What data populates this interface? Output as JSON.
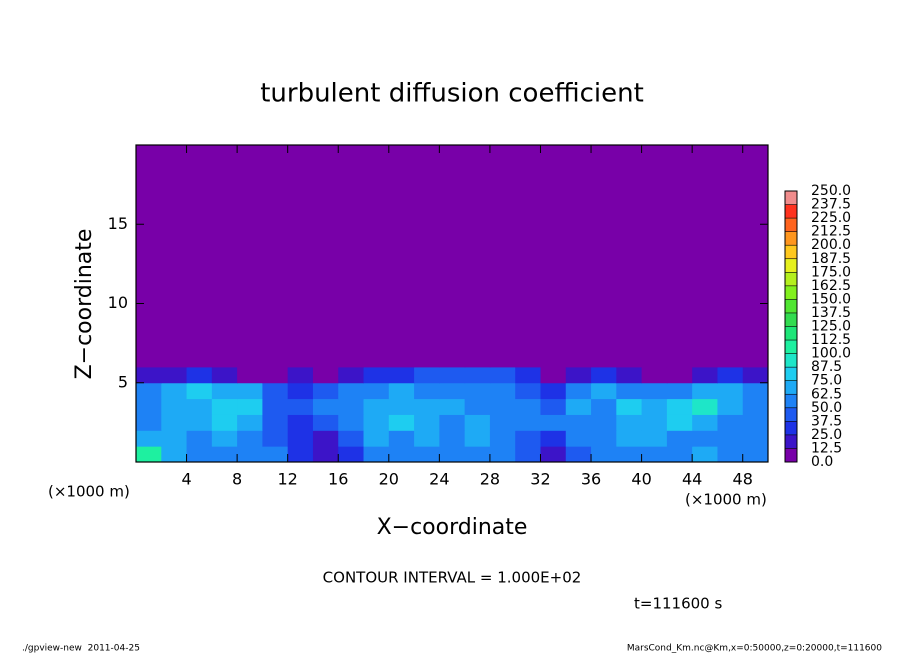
{
  "chart_data": {
    "type": "heatmap",
    "title": "turbulent diffusion coefficient",
    "x_label": "X−coordinate",
    "y_label": "Z−coordinate",
    "x_unit": "(×1000 m)",
    "y_unit": "(×1000 m)",
    "xlim": [
      0,
      50
    ],
    "ylim": [
      0,
      20
    ],
    "xticks": [
      4,
      8,
      12,
      16,
      20,
      24,
      28,
      32,
      36,
      40,
      44,
      48
    ],
    "yticks": [
      5,
      10,
      15
    ],
    "x_edges": [
      0,
      2,
      4,
      6,
      8,
      10,
      12,
      14,
      16,
      18,
      20,
      22,
      24,
      26,
      28,
      30,
      32,
      34,
      36,
      38,
      40,
      42,
      44,
      46,
      48,
      50
    ],
    "y_edges": [
      0,
      1,
      2,
      3,
      4,
      5,
      6,
      20
    ],
    "values": [
      [
        100,
        70,
        60,
        55,
        60,
        50,
        30,
        20,
        25,
        50,
        60,
        55,
        50,
        60,
        55,
        40,
        20,
        40,
        50,
        60,
        55,
        60,
        65,
        60,
        55
      ],
      [
        70,
        65,
        60,
        70,
        60,
        45,
        25,
        20,
        40,
        65,
        60,
        70,
        55,
        65,
        50,
        45,
        30,
        50,
        55,
        65,
        70,
        60,
        60,
        55,
        50
      ],
      [
        60,
        70,
        65,
        75,
        70,
        40,
        35,
        45,
        55,
        70,
        75,
        65,
        60,
        70,
        55,
        60,
        50,
        60,
        50,
        70,
        65,
        75,
        70,
        60,
        55
      ],
      [
        55,
        65,
        70,
        75,
        80,
        45,
        40,
        50,
        60,
        65,
        70,
        70,
        65,
        60,
        60,
        55,
        45,
        65,
        60,
        75,
        65,
        80,
        90,
        70,
        60
      ],
      [
        60,
        70,
        75,
        70,
        65,
        40,
        35,
        45,
        55,
        60,
        65,
        60,
        60,
        55,
        55,
        40,
        30,
        55,
        65,
        60,
        55,
        50,
        70,
        65,
        50
      ],
      [
        15,
        20,
        25,
        15,
        10,
        5,
        15,
        10,
        20,
        30,
        35,
        40,
        45,
        45,
        45,
        30,
        10,
        20,
        25,
        15,
        10,
        10,
        20,
        25,
        15
      ],
      [
        5,
        5,
        5,
        5,
        5,
        5,
        5,
        5,
        5,
        5,
        5,
        5,
        5,
        5,
        5,
        5,
        5,
        5,
        5,
        5,
        5,
        5,
        5,
        5,
        5
      ]
    ],
    "colorbar": {
      "levels": [
        {
          "value": 0,
          "label": "0.0"
        },
        {
          "value": 12.5,
          "label": "12.5"
        },
        {
          "value": 25,
          "label": "25.0"
        },
        {
          "value": 37.5,
          "label": "37.5"
        },
        {
          "value": 50,
          "label": "50.0"
        },
        {
          "value": 62.5,
          "label": "62.5"
        },
        {
          "value": 75,
          "label": "75.0"
        },
        {
          "value": 87.5,
          "label": "87.5"
        },
        {
          "value": 100,
          "label": "100.0"
        },
        {
          "value": 112.5,
          "label": "112.5"
        },
        {
          "value": 125,
          "label": "125.0"
        },
        {
          "value": 137.5,
          "label": "137.5"
        },
        {
          "value": 150,
          "label": "150.0"
        },
        {
          "value": 162.5,
          "label": "162.5"
        },
        {
          "value": 175,
          "label": "175.0"
        },
        {
          "value": 187.5,
          "label": "187.5"
        },
        {
          "value": 200,
          "label": "200.0"
        },
        {
          "value": 212.5,
          "label": "212.5"
        },
        {
          "value": 225,
          "label": "225.0"
        },
        {
          "value": 237.5,
          "label": "237.5"
        },
        {
          "value": 250,
          "label": "250.0"
        }
      ],
      "colors": [
        "#7800a8",
        "#3c14c8",
        "#1e32e6",
        "#1e5af0",
        "#1e82f5",
        "#1eaaf5",
        "#1ecdf0",
        "#1ee6c8",
        "#1ef0a0",
        "#1ee678",
        "#32dc50",
        "#50e632",
        "#82f01e",
        "#b4f01e",
        "#e6f01e",
        "#ffc81e",
        "#ff961e",
        "#ff641e",
        "#ff321e",
        "#f08c8c"
      ]
    },
    "contour_note": "CONTOUR INTERVAL = 1.000E+02",
    "time_label": "t=111600 s",
    "footer_left": "./gpview-new  2011-04-25",
    "footer_right": "MarsCond_Km.nc@Km,x=0:50000,z=0:20000,t=111600"
  }
}
